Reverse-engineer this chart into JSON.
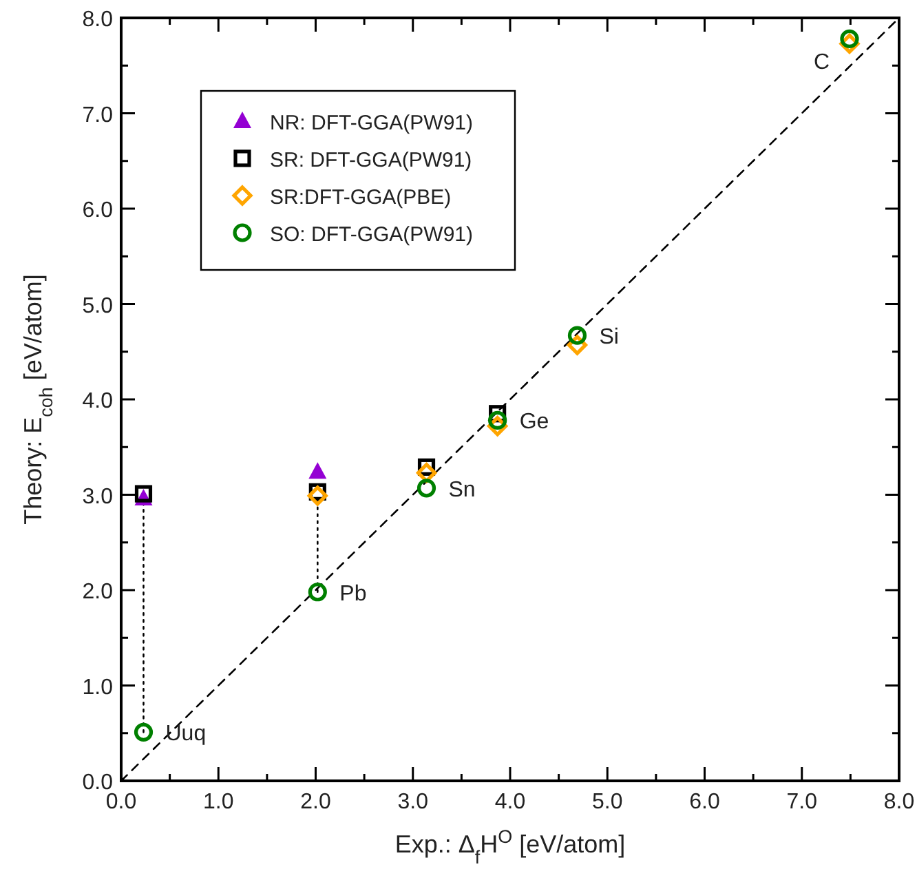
{
  "chart_data": {
    "type": "scatter",
    "xlabel": "Exp.: Δ$_{f}$H$^{O}$ [eV/atom]",
    "ylabel": "Theory: E$_{coh}$ [eV/atom]",
    "xlim": [
      0,
      8
    ],
    "ylim": [
      0,
      8
    ],
    "xticks": [
      {
        "value": 0,
        "label": "0.0"
      },
      {
        "value": 0.5,
        "label": null
      },
      {
        "value": 1,
        "label": "1.0"
      },
      {
        "value": 1.5,
        "label": null
      },
      {
        "value": 2,
        "label": "2.0"
      },
      {
        "value": 2.5,
        "label": null
      },
      {
        "value": 3,
        "label": "3.0"
      },
      {
        "value": 3.5,
        "label": null
      },
      {
        "value": 4,
        "label": "4.0"
      },
      {
        "value": 4.5,
        "label": null
      },
      {
        "value": 5,
        "label": "5.0"
      },
      {
        "value": 5.5,
        "label": null
      },
      {
        "value": 6,
        "label": "6.0"
      },
      {
        "value": 6.5,
        "label": null
      },
      {
        "value": 7,
        "label": "7.0"
      },
      {
        "value": 7.5,
        "label": null
      },
      {
        "value": 8,
        "label": "8.0"
      }
    ],
    "yticks": [
      {
        "value": 0,
        "label": "0.0"
      },
      {
        "value": 0.5,
        "label": null
      },
      {
        "value": 1,
        "label": "1.0"
      },
      {
        "value": 1.5,
        "label": null
      },
      {
        "value": 2,
        "label": "2.0"
      },
      {
        "value": 2.5,
        "label": null
      },
      {
        "value": 3,
        "label": "3.0"
      },
      {
        "value": 3.5,
        "label": null
      },
      {
        "value": 4,
        "label": "4.0"
      },
      {
        "value": 4.5,
        "label": null
      },
      {
        "value": 5,
        "label": "5.0"
      },
      {
        "value": 5.5,
        "label": null
      },
      {
        "value": 6,
        "label": "6.0"
      },
      {
        "value": 6.5,
        "label": null
      },
      {
        "value": 7,
        "label": "7.0"
      },
      {
        "value": 7.5,
        "label": null
      },
      {
        "value": 8,
        "label": "8.0"
      }
    ],
    "grid": false,
    "legend": "top left",
    "x": [
      0.23,
      2.02,
      3.14,
      3.87,
      4.69,
      7.49
    ],
    "series": [
      {
        "type": "line",
        "x": [
          0,
          8
        ],
        "values": [
          0,
          8
        ],
        "color": "#000000",
        "line_style": "dashed",
        "marker": "none"
      },
      {
        "type": "line",
        "x": [
          0.23,
          0.23
        ],
        "values": [
          0.51,
          2.96
        ],
        "color": "#000000",
        "line_style": "dotted",
        "marker": "none"
      },
      {
        "type": "line",
        "x": [
          2.02,
          2.02
        ],
        "values": [
          1.98,
          2.98
        ],
        "color": "#000000",
        "line_style": "dotted",
        "marker": "none"
      },
      {
        "name": "NR: DFT-GGA(PW91)",
        "color": "#9400d3",
        "marker": "triangle",
        "values": [
          2.96,
          3.24,
          null,
          null,
          null,
          null
        ]
      },
      {
        "name": "SR: DFT-GGA(PW91)",
        "color": "#000000",
        "marker": "square",
        "values": [
          3.01,
          3.03,
          3.29,
          3.85,
          null,
          null
        ]
      },
      {
        "name": "SR:DFT-GGA(PBE)",
        "color": "#ffa500",
        "marker": "diamond",
        "values": [
          null,
          2.99,
          3.23,
          3.72,
          4.57,
          7.73
        ]
      },
      {
        "name": "SO: DFT-GGA(PW91)",
        "color": "#008000",
        "marker": "circle",
        "values": [
          0.51,
          1.98,
          3.07,
          3.78,
          4.67,
          7.78
        ]
      }
    ],
    "annotations": [
      {
        "text": "Uuq",
        "x": 0.23,
        "y": 0.51
      },
      {
        "text": "Pb",
        "x": 2.02,
        "y": 1.98
      },
      {
        "text": "Sn",
        "x": 3.14,
        "y": 3.07
      },
      {
        "text": "Ge",
        "x": 3.87,
        "y": 3.78
      },
      {
        "text": "Si",
        "x": 4.69,
        "y": 4.67
      },
      {
        "text": "C",
        "x": 7.49,
        "y": 7.78
      }
    ]
  }
}
